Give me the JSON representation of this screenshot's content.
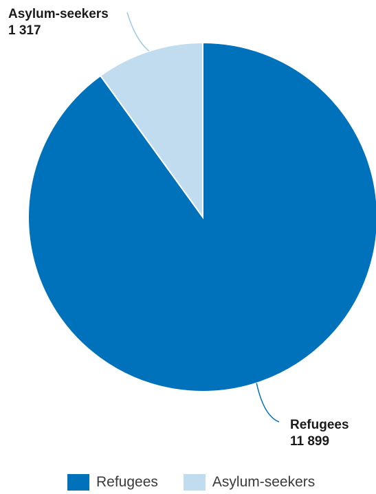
{
  "chart_data": {
    "type": "pie",
    "series": [
      {
        "name": "Refugees",
        "value": 11899,
        "value_label": "11 899",
        "color": "#0072bc"
      },
      {
        "name": "Asylum-seekers",
        "value": 1317,
        "value_label": "1 317",
        "color": "#c1dcee"
      }
    ],
    "start_angle_deg": 0,
    "direction": "clockwise",
    "legend_position": "bottom"
  },
  "legend": {
    "items": [
      {
        "label": "Refugees",
        "color": "#0072bc"
      },
      {
        "label": "Asylum-seekers",
        "color": "#c1dcee"
      }
    ]
  }
}
